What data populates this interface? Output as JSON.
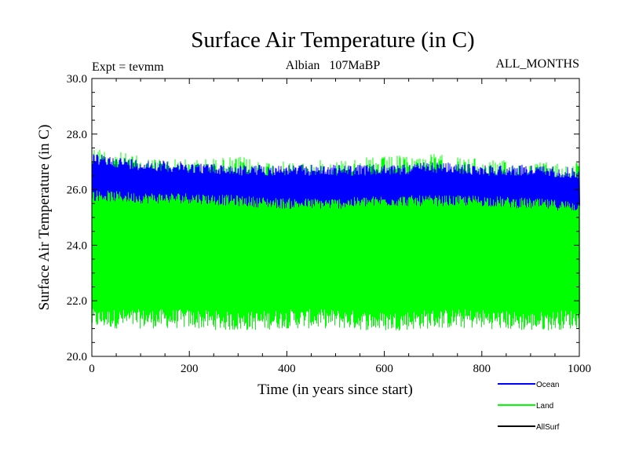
{
  "chart_data": {
    "type": "line",
    "title": "Surface Air Temperature (in C)",
    "subtitle_left": "Expt = tevmm",
    "subtitle_center": "Albian   107MaBP",
    "subtitle_right": "ALL_MONTHS",
    "xlabel": "Time (in years since start)",
    "ylabel": "Surface Air Temperature (in C)",
    "xlim": [
      0,
      1000
    ],
    "ylim": [
      20.0,
      30.0
    ],
    "xticks": [
      0,
      200,
      400,
      600,
      800,
      1000
    ],
    "xtick_labels": [
      "0",
      "200",
      "400",
      "600",
      "800",
      "1000"
    ],
    "yticks": [
      20,
      22,
      24,
      26,
      28,
      30
    ],
    "ytick_labels": [
      "20.0",
      "22.0",
      "24.0",
      "26.0",
      "28.0",
      "30.0"
    ],
    "legend_position": "bottom-right",
    "series": [
      {
        "name": "Land",
        "color": "#00ff00",
        "description": "monthly values oscillating between roughly 20.5 and 27.5",
        "envelope_x": [
          0,
          100,
          200,
          300,
          400,
          500,
          600,
          700,
          800,
          900,
          1000
        ],
        "envelope_low": [
          21.0,
          21.0,
          21.0,
          20.9,
          21.0,
          21.0,
          20.9,
          21.0,
          21.0,
          20.9,
          21.0
        ],
        "envelope_high": [
          27.6,
          27.2,
          27.1,
          27.2,
          27.0,
          27.1,
          27.2,
          27.3,
          27.1,
          27.0,
          27.0
        ]
      },
      {
        "name": "Ocean",
        "color": "#0000ff",
        "description": "monthly values oscillating between roughly 25.3 and 27.1",
        "envelope_x": [
          0,
          100,
          200,
          300,
          400,
          500,
          600,
          700,
          800,
          900,
          1000
        ],
        "envelope_low": [
          25.6,
          25.5,
          25.5,
          25.4,
          25.3,
          25.3,
          25.4,
          25.4,
          25.4,
          25.3,
          25.2
        ],
        "envelope_high": [
          27.3,
          27.1,
          27.0,
          26.9,
          26.9,
          26.9,
          26.9,
          27.0,
          26.9,
          26.9,
          26.8
        ]
      },
      {
        "name": "AllSurf",
        "color": "#000000",
        "description": "listed in legend; hidden beneath the Ocean and Land traces"
      }
    ]
  }
}
